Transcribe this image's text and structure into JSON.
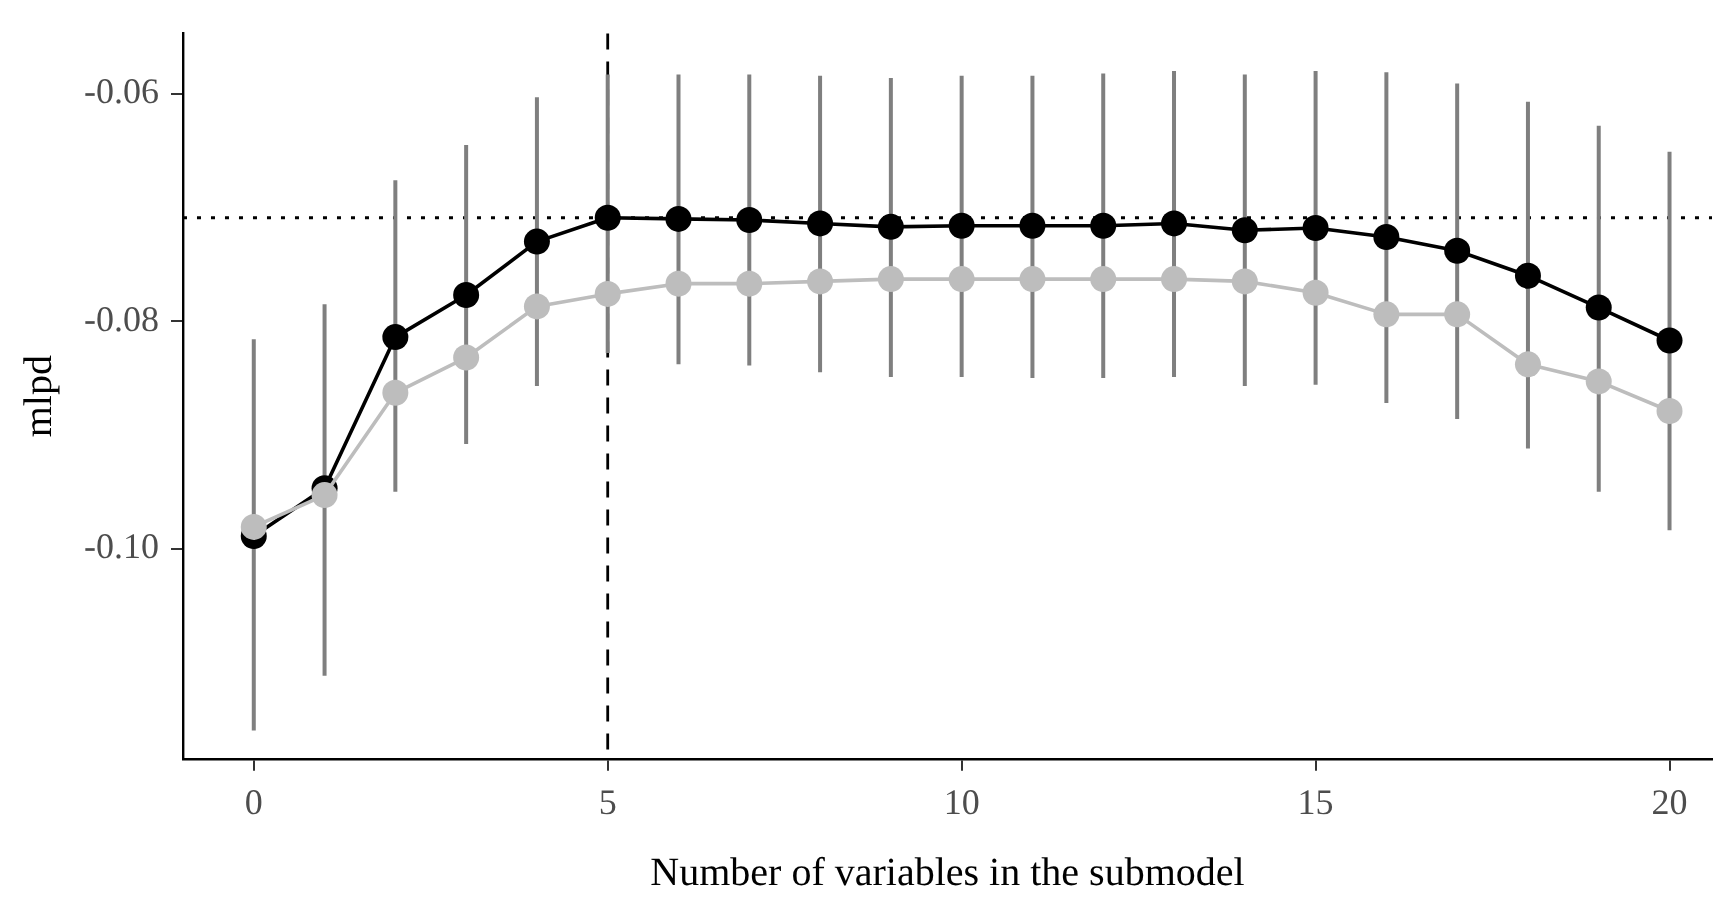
{
  "chart_data": {
    "type": "line",
    "xlabel": "Number of variables in the submodel",
    "ylabel": "mlpd",
    "x": [
      0,
      1,
      2,
      3,
      4,
      5,
      6,
      7,
      8,
      9,
      10,
      11,
      12,
      13,
      14,
      15,
      16,
      17,
      18,
      19,
      20
    ],
    "series": [
      {
        "color": "#bdbdbd",
        "values": [
          -0.0981,
          -0.0953,
          -0.0863,
          -0.0832,
          -0.0787,
          -0.0776,
          -0.0767,
          -0.0767,
          -0.0765,
          -0.0763,
          -0.0763,
          -0.0763,
          -0.0763,
          -0.0763,
          -0.0765,
          -0.0775,
          -0.0794,
          -0.0794,
          -0.0838,
          -0.0853,
          -0.0879
        ]
      },
      {
        "color": "#000000",
        "values": [
          -0.0989,
          -0.0947,
          -0.0814,
          -0.0777,
          -0.073,
          -0.0709,
          -0.071,
          -0.0711,
          -0.0714,
          -0.0717,
          -0.0716,
          -0.0716,
          -0.0716,
          -0.0714,
          -0.072,
          -0.0718,
          -0.0726,
          -0.0738,
          -0.076,
          -0.0788,
          -0.0817
        ],
        "errors": [
          [
            -0.116,
            -0.0816
          ],
          [
            -0.1112,
            -0.0785
          ],
          [
            -0.095,
            -0.0676
          ],
          [
            -0.0908,
            -0.0645
          ],
          [
            -0.0857,
            -0.0603
          ],
          [
            -0.0828,
            -0.0583
          ],
          [
            -0.0838,
            -0.0583
          ],
          [
            -0.0839,
            -0.0583
          ],
          [
            -0.0845,
            -0.0584
          ],
          [
            -0.0849,
            -0.0586
          ],
          [
            -0.0849,
            -0.0584
          ],
          [
            -0.085,
            -0.0584
          ],
          [
            -0.085,
            -0.0582
          ],
          [
            -0.0849,
            -0.058
          ],
          [
            -0.0857,
            -0.0583
          ],
          [
            -0.0856,
            -0.058
          ],
          [
            -0.0872,
            -0.0581
          ],
          [
            -0.0886,
            -0.0591
          ],
          [
            -0.0912,
            -0.0607
          ],
          [
            -0.095,
            -0.0628
          ],
          [
            -0.0984,
            -0.0651
          ]
        ]
      }
    ],
    "ref_lines": [
      {
        "axis": "y",
        "value": -0.0709,
        "line_style": "dotted"
      },
      {
        "axis": "x",
        "value": 5,
        "line_style": "dashed"
      }
    ],
    "xlim": [
      -1,
      20.6
    ],
    "xticks": [
      0,
      5,
      10,
      15,
      20
    ],
    "ylim": [
      -0.1185,
      -0.0547
    ],
    "yticks": [
      -0.06,
      -0.08,
      {
        "value": -0.1,
        "label": "-0.10"
      }
    ],
    "marker": "circle",
    "line_style": "solid",
    "grid": false,
    "legend": false
  }
}
